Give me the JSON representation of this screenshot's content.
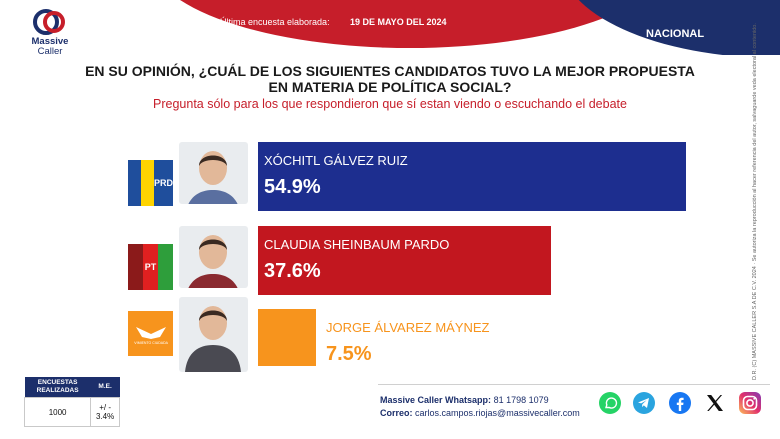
{
  "header": {
    "date_label": "Última encuesta elaborada:",
    "date_value": "19 DE MAYO DEL 2024",
    "scope": "NACIONAL"
  },
  "logo": {
    "line1": "Massive",
    "line2": "Caller"
  },
  "question": {
    "line1": "EN SU OPINIÓN, ¿CUÁL DE LOS SIGUIENTES CANDIDATOS TUVO LA MEJOR PROPUESTA",
    "line2": "EN MATERIA DE POLÍTICA SOCIAL?",
    "subtitle": "Pregunta sólo para los que respondieron que sí estan viendo o escuchando el debate"
  },
  "chart_data": {
    "type": "bar",
    "categories": [
      "XÓCHITL GÁLVEZ RUIZ",
      "CLAUDIA SHEINBAUM PARDO",
      "JORGE ÁLVAREZ MÁYNEZ"
    ],
    "values": [
      54.9,
      37.6,
      7.5
    ],
    "value_labels": [
      "54.9%",
      "37.6%",
      "7.5%"
    ],
    "unit": "%",
    "colors": [
      "#1d2e8f",
      "#c2171f",
      "#f7941d"
    ],
    "text_colors": [
      "#ffffff",
      "#ffffff",
      "#f7941d"
    ],
    "photo_colors": [
      "#5a6fa0",
      "#8a2a30",
      "#4a4a52"
    ],
    "party_colors": [
      [
        "#1f4e9c",
        "#ffd400",
        "#1f4e9c"
      ],
      [
        "#8b1a1a",
        "#e02020",
        "#2e9e3b"
      ],
      [
        "#f7941d"
      ]
    ],
    "party_labels": [
      [
        "",
        "",
        "PRD"
      ],
      [
        "",
        "PT",
        ""
      ],
      [
        "MOVIMIENTO CIUDADANO"
      ]
    ]
  },
  "sidebar_legal": "D.R. (C) MASSIVE CALLER S.A DE C.V. 2024 · Se autoriza la reproducción al hacer referencia del autor, salvaguarde veda electoral al contenido.",
  "footer_table": {
    "headers": [
      "ENCUESTAS REALIZADAS",
      "M.E."
    ],
    "values": [
      "1000",
      "+/ - 3.4%"
    ]
  },
  "contact": {
    "whatsapp_label": "Massive Caller Whatsapp:",
    "whatsapp_value": "81 1798 1079",
    "email_label": "Correo:",
    "email_value": "carlos.campos.riojas@massivecaller.com"
  },
  "social": [
    {
      "icon": "whatsapp-icon",
      "color": "#25d366"
    },
    {
      "icon": "telegram-icon",
      "color": "#2aa4df"
    },
    {
      "icon": "facebook-icon",
      "color": "#1877f2"
    },
    {
      "icon": "x-icon",
      "color": "#111111"
    },
    {
      "icon": "instagram-icon",
      "color": "#d62976"
    }
  ]
}
